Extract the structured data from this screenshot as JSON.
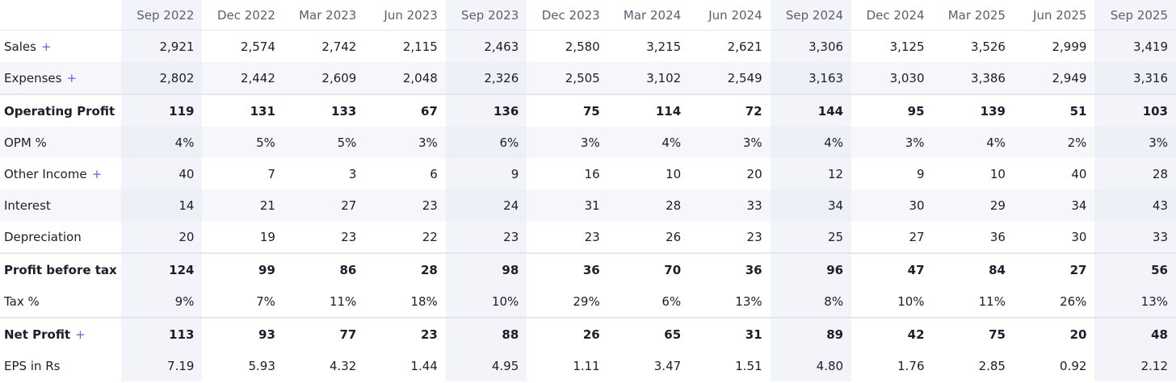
{
  "table": {
    "header": [
      "Sep 2022",
      "Dec 2022",
      "Mar 2023",
      "Jun 2023",
      "Sep 2023",
      "Dec 2023",
      "Mar 2024",
      "Jun 2024",
      "Sep 2024",
      "Dec 2024",
      "Mar 2025",
      "Jun 2025",
      "Sep 2025"
    ],
    "rows": [
      {
        "label": "Sales",
        "expandable": true,
        "bold": false,
        "cells": [
          "2,921",
          "2,574",
          "2,742",
          "2,115",
          "2,463",
          "2,580",
          "3,215",
          "2,621",
          "3,306",
          "3,125",
          "3,526",
          "2,999",
          "3,419"
        ]
      },
      {
        "label": "Expenses",
        "expandable": true,
        "bold": false,
        "cells": [
          "2,802",
          "2,442",
          "2,609",
          "2,048",
          "2,326",
          "2,505",
          "3,102",
          "2,549",
          "3,163",
          "3,030",
          "3,386",
          "2,949",
          "3,316"
        ]
      },
      {
        "label": "Operating Profit",
        "expandable": false,
        "bold": true,
        "cells": [
          "119",
          "131",
          "133",
          "67",
          "136",
          "75",
          "114",
          "72",
          "144",
          "95",
          "139",
          "51",
          "103"
        ]
      },
      {
        "label": "OPM %",
        "expandable": false,
        "bold": false,
        "cells": [
          "4%",
          "5%",
          "5%",
          "3%",
          "6%",
          "3%",
          "4%",
          "3%",
          "4%",
          "3%",
          "4%",
          "2%",
          "3%"
        ]
      },
      {
        "label": "Other Income",
        "expandable": true,
        "bold": false,
        "cells": [
          "40",
          "7",
          "3",
          "6",
          "9",
          "16",
          "10",
          "20",
          "12",
          "9",
          "10",
          "40",
          "28"
        ]
      },
      {
        "label": "Interest",
        "expandable": false,
        "bold": false,
        "cells": [
          "14",
          "21",
          "27",
          "23",
          "24",
          "31",
          "28",
          "33",
          "34",
          "30",
          "29",
          "34",
          "43"
        ]
      },
      {
        "label": "Depreciation",
        "expandable": false,
        "bold": false,
        "cells": [
          "20",
          "19",
          "23",
          "22",
          "23",
          "23",
          "26",
          "23",
          "25",
          "27",
          "36",
          "30",
          "33"
        ]
      },
      {
        "label": "Profit before tax",
        "expandable": false,
        "bold": true,
        "cells": [
          "124",
          "99",
          "86",
          "28",
          "98",
          "36",
          "70",
          "36",
          "96",
          "47",
          "84",
          "27",
          "56"
        ]
      },
      {
        "label": "Tax %",
        "expandable": false,
        "bold": false,
        "cells": [
          "9%",
          "7%",
          "11%",
          "18%",
          "10%",
          "29%",
          "6%",
          "13%",
          "8%",
          "10%",
          "11%",
          "26%",
          "13%"
        ]
      },
      {
        "label": "Net Profit",
        "expandable": true,
        "bold": true,
        "cells": [
          "113",
          "93",
          "77",
          "23",
          "88",
          "26",
          "65",
          "31",
          "89",
          "42",
          "75",
          "20",
          "48"
        ]
      },
      {
        "label": "EPS in Rs",
        "expandable": false,
        "bold": false,
        "cells": [
          "7.19",
          "5.93",
          "4.32",
          "1.44",
          "4.95",
          "1.11",
          "3.47",
          "1.51",
          "4.80",
          "1.76",
          "2.85",
          "0.92",
          "2.12"
        ]
      }
    ]
  }
}
